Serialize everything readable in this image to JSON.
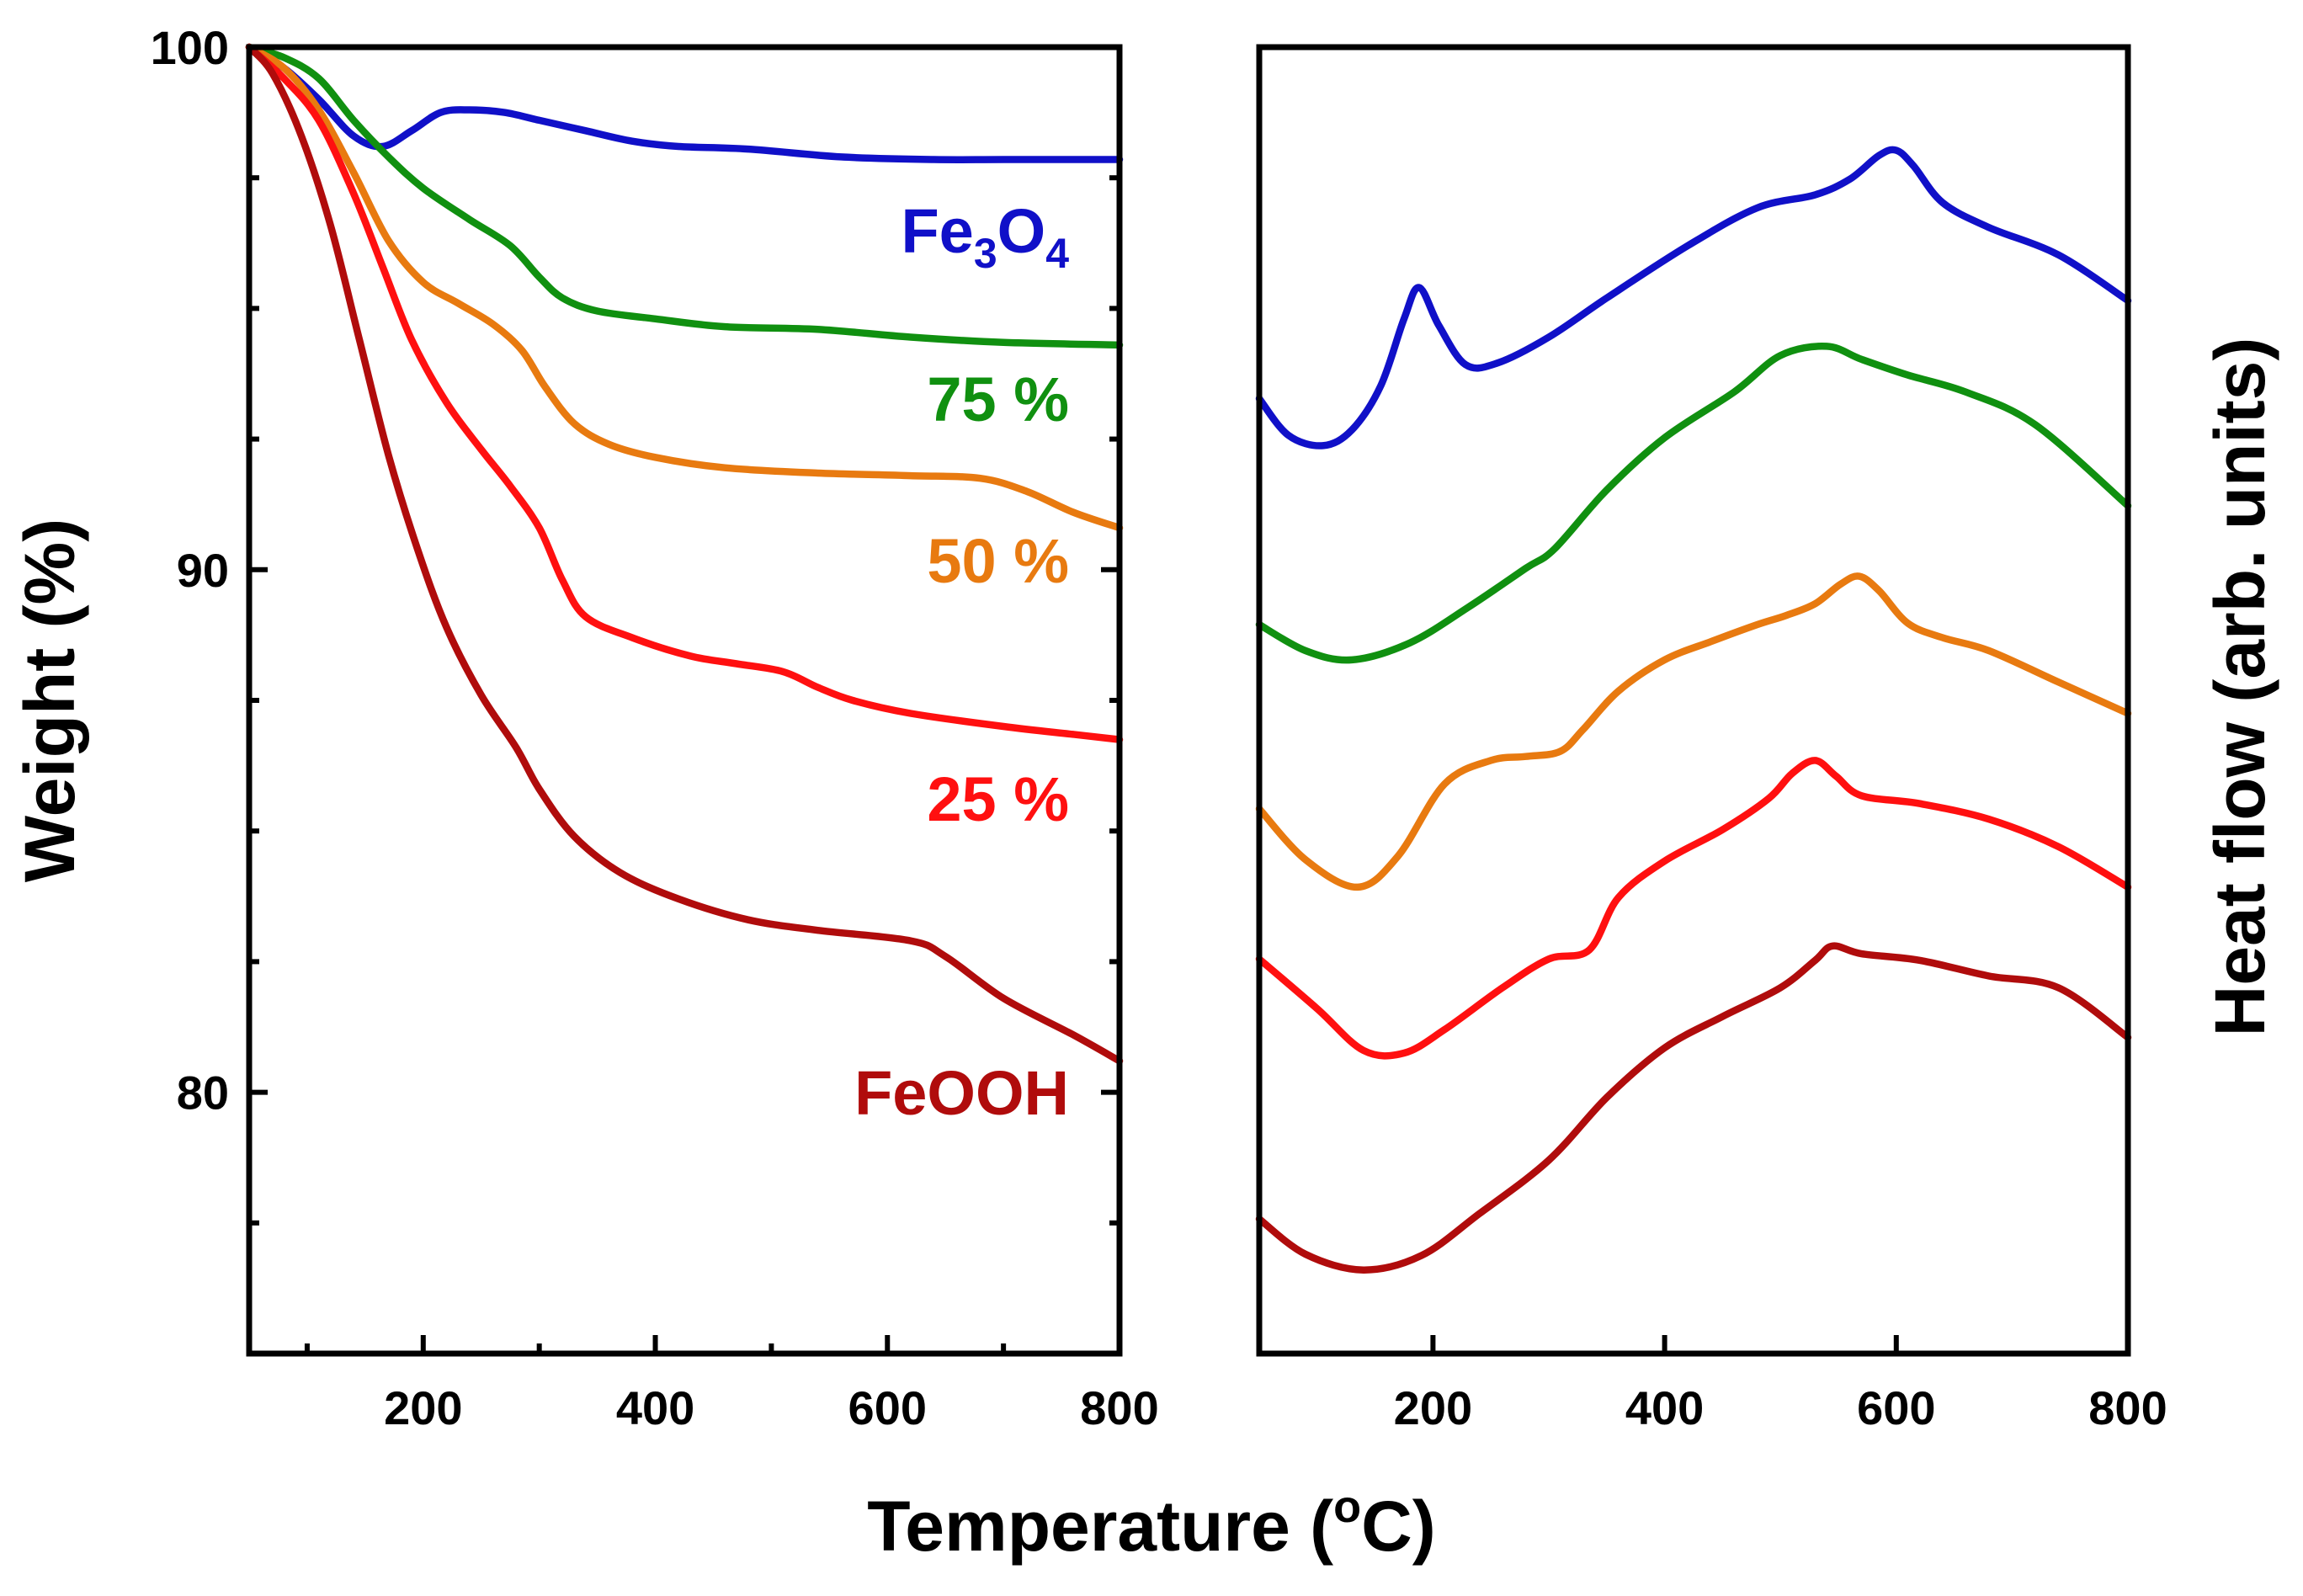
{
  "chart_data": [
    {
      "type": "line",
      "panel": "left",
      "xlabel": "",
      "ylabel": "Weight (%)",
      "xlim": [
        50,
        800
      ],
      "ylim": [
        75,
        100
      ],
      "x_ticks": [
        200,
        400,
        600,
        800
      ],
      "x_minor_ticks": [
        100,
        300,
        500,
        700
      ],
      "y_ticks": [
        80,
        90,
        100
      ],
      "y_minor_ticks": [
        77.5,
        82.5,
        85,
        87.5,
        92.5,
        95,
        97.5
      ],
      "grid": false,
      "series": [
        {
          "name": "Fe3O4",
          "label_main": "Fe",
          "label_sub1": "3",
          "label_mid": "O",
          "label_sub2": "4",
          "color": "#1010c8",
          "points": [
            [
              50,
              100
            ],
            [
              80,
              99.6
            ],
            [
              110,
              99
            ],
            [
              140,
              98.3
            ],
            [
              165,
              98.1
            ],
            [
              190,
              98.4
            ],
            [
              215,
              98.75
            ],
            [
              240,
              98.8
            ],
            [
              270,
              98.75
            ],
            [
              300,
              98.6
            ],
            [
              340,
              98.4
            ],
            [
              380,
              98.2
            ],
            [
              420,
              98.1
            ],
            [
              480,
              98.05
            ],
            [
              560,
              97.9
            ],
            [
              640,
              97.85
            ],
            [
              700,
              97.85
            ],
            [
              800,
              97.85
            ]
          ]
        },
        {
          "name": "75 %",
          "color": "#109010",
          "points": [
            [
              50,
              100
            ],
            [
              80,
              99.8
            ],
            [
              110,
              99.4
            ],
            [
              140,
              98.6
            ],
            [
              170,
              97.9
            ],
            [
              200,
              97.3
            ],
            [
              240,
              96.7
            ],
            [
              275,
              96.2
            ],
            [
              300,
              95.6
            ],
            [
              320,
              95.2
            ],
            [
              350,
              94.95
            ],
            [
              400,
              94.8
            ],
            [
              460,
              94.65
            ],
            [
              540,
              94.6
            ],
            [
              620,
              94.45
            ],
            [
              700,
              94.35
            ],
            [
              800,
              94.3
            ]
          ]
        },
        {
          "name": "50 %",
          "color": "#e87a10",
          "points": [
            [
              50,
              100
            ],
            [
              80,
              99.6
            ],
            [
              110,
              98.8
            ],
            [
              140,
              97.6
            ],
            [
              170,
              96.3
            ],
            [
              200,
              95.5
            ],
            [
              230,
              95.1
            ],
            [
              260,
              94.7
            ],
            [
              285,
              94.2
            ],
            [
              305,
              93.5
            ],
            [
              330,
              92.8
            ],
            [
              360,
              92.4
            ],
            [
              400,
              92.15
            ],
            [
              460,
              91.95
            ],
            [
              540,
              91.85
            ],
            [
              620,
              91.8
            ],
            [
              680,
              91.75
            ],
            [
              720,
              91.5
            ],
            [
              760,
              91.1
            ],
            [
              800,
              90.8
            ]
          ]
        },
        {
          "name": "25 %",
          "color": "#ff1010",
          "points": [
            [
              50,
              100
            ],
            [
              80,
              99.4
            ],
            [
              110,
              98.6
            ],
            [
              140,
              97.2
            ],
            [
              165,
              95.8
            ],
            [
              190,
              94.4
            ],
            [
              220,
              93.2
            ],
            [
              250,
              92.3
            ],
            [
              275,
              91.6
            ],
            [
              300,
              90.8
            ],
            [
              320,
              89.8
            ],
            [
              340,
              89.1
            ],
            [
              380,
              88.7
            ],
            [
              430,
              88.35
            ],
            [
              470,
              88.2
            ],
            [
              510,
              88.05
            ],
            [
              540,
              87.75
            ],
            [
              570,
              87.5
            ],
            [
              620,
              87.25
            ],
            [
              700,
              87
            ],
            [
              760,
              86.85
            ],
            [
              800,
              86.75
            ]
          ]
        },
        {
          "name": "FeOOH",
          "color": "#b00c0c",
          "points": [
            [
              50,
              100
            ],
            [
              70,
              99.5
            ],
            [
              95,
              98.3
            ],
            [
              120,
              96.6
            ],
            [
              145,
              94.4
            ],
            [
              170,
              92.2
            ],
            [
              195,
              90.4
            ],
            [
              220,
              88.9
            ],
            [
              250,
              87.6
            ],
            [
              280,
              86.6
            ],
            [
              300,
              85.8
            ],
            [
              330,
              84.9
            ],
            [
              370,
              84.2
            ],
            [
              420,
              83.7
            ],
            [
              480,
              83.3
            ],
            [
              540,
              83.1
            ],
            [
              620,
              82.9
            ],
            [
              650,
              82.6
            ],
            [
              700,
              81.8
            ],
            [
              760,
              81.1
            ],
            [
              800,
              80.6
            ]
          ]
        }
      ]
    },
    {
      "type": "line",
      "panel": "right",
      "xlabel": "Temperature (oC)",
      "xlabel_main": "Temperature (",
      "xlabel_sup": "o",
      "xlabel_end": "C)",
      "ylabel": "Heat flow (arb. units)",
      "xlim": [
        50,
        800
      ],
      "ylim": [
        0,
        100
      ],
      "x_ticks": [
        200,
        400,
        600,
        800
      ],
      "y_ticks": [],
      "grid": false,
      "series": [
        {
          "name": "Fe3O4",
          "color": "#1010c8",
          "points": [
            [
              50,
              73.1
            ],
            [
              75,
              70.3
            ],
            [
              105,
              69.5
            ],
            [
              130,
              70.7
            ],
            [
              155,
              74.1
            ],
            [
              175,
              79.2
            ],
            [
              188,
              81.6
            ],
            [
              205,
              78.7
            ],
            [
              228,
              75.7
            ],
            [
              255,
              75.8
            ],
            [
              300,
              77.8
            ],
            [
              350,
              80.8
            ],
            [
              420,
              84.8
            ],
            [
              480,
              87.7
            ],
            [
              530,
              88.7
            ],
            [
              560,
              89.9
            ],
            [
              585,
              91.7
            ],
            [
              600,
              92.1
            ],
            [
              615,
              90.9
            ],
            [
              640,
              88.1
            ],
            [
              680,
              86.2
            ],
            [
              740,
              84.1
            ],
            [
              800,
              80.6
            ]
          ]
        },
        {
          "name": "75 %",
          "color": "#109010",
          "points": [
            [
              50,
              55.8
            ],
            [
              90,
              53.8
            ],
            [
              130,
              53.1
            ],
            [
              180,
              54.4
            ],
            [
              230,
              57.1
            ],
            [
              280,
              60.1
            ],
            [
              305,
              61.6
            ],
            [
              350,
              66.1
            ],
            [
              400,
              70.1
            ],
            [
              460,
              73.6
            ],
            [
              500,
              76.4
            ],
            [
              540,
              77.1
            ],
            [
              570,
              76.1
            ],
            [
              610,
              74.9
            ],
            [
              660,
              73.6
            ],
            [
              720,
              71.1
            ],
            [
              800,
              64.9
            ]
          ]
        },
        {
          "name": "50 %",
          "color": "#e87a10",
          "points": [
            [
              50,
              41.7
            ],
            [
              90,
              37.8
            ],
            [
              135,
              35.7
            ],
            [
              170,
              38.1
            ],
            [
              210,
              43.6
            ],
            [
              250,
              45.4
            ],
            [
              280,
              45.7
            ],
            [
              310,
              46.1
            ],
            [
              330,
              47.8
            ],
            [
              360,
              50.7
            ],
            [
              400,
              53.1
            ],
            [
              440,
              54.5
            ],
            [
              480,
              55.8
            ],
            [
              505,
              56.5
            ],
            [
              530,
              57.4
            ],
            [
              552,
              58.9
            ],
            [
              568,
              59.5
            ],
            [
              585,
              58.4
            ],
            [
              610,
              55.9
            ],
            [
              640,
              54.8
            ],
            [
              680,
              53.8
            ],
            [
              740,
              51.4
            ],
            [
              800,
              49
            ]
          ]
        },
        {
          "name": "25 %",
          "color": "#ff1010",
          "points": [
            [
              50,
              30.2
            ],
            [
              100,
              26.4
            ],
            [
              140,
              23.2
            ],
            [
              175,
              23
            ],
            [
              210,
              24.8
            ],
            [
              260,
              28
            ],
            [
              300,
              30.2
            ],
            [
              335,
              30.9
            ],
            [
              360,
              34.9
            ],
            [
              400,
              37.7
            ],
            [
              450,
              40.1
            ],
            [
              490,
              42.5
            ],
            [
              510,
              44.4
            ],
            [
              530,
              45.4
            ],
            [
              548,
              44.2
            ],
            [
              570,
              42.7
            ],
            [
              620,
              42.1
            ],
            [
              680,
              40.9
            ],
            [
              740,
              38.8
            ],
            [
              800,
              35.7
            ]
          ]
        },
        {
          "name": "FeOOH",
          "color": "#b00c0c",
          "points": [
            [
              50,
              10.3
            ],
            [
              90,
              7.6
            ],
            [
              140,
              6.4
            ],
            [
              190,
              7.5
            ],
            [
              240,
              10.7
            ],
            [
              300,
              14.8
            ],
            [
              350,
              19.6
            ],
            [
              400,
              23.4
            ],
            [
              450,
              25.8
            ],
            [
              500,
              28
            ],
            [
              530,
              30.1
            ],
            [
              545,
              31.2
            ],
            [
              570,
              30.6
            ],
            [
              620,
              30.1
            ],
            [
              680,
              28.9
            ],
            [
              740,
              28
            ],
            [
              800,
              24.2
            ]
          ]
        }
      ]
    }
  ]
}
